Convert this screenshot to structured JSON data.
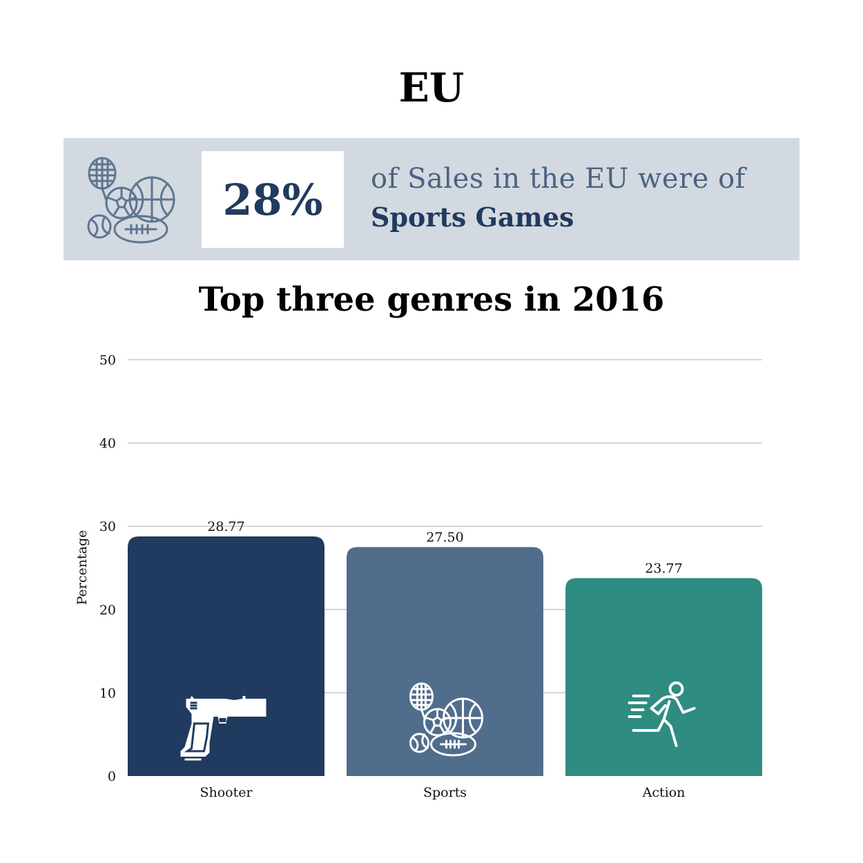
{
  "region_title": "EU",
  "banner": {
    "icon": "sports-balls-icon",
    "stat": "28%",
    "line1": "of Sales in the EU were of",
    "line2": "Sports Games"
  },
  "colors": {
    "banner_bg": "#d3d9e0",
    "navy": "#213a5f",
    "slate": "#516d8c",
    "teal": "#2e8c80",
    "grid": "#c8c8c8"
  },
  "chart_data": {
    "type": "bar",
    "title": "Top three genres in 2016",
    "categories": [
      "Shooter",
      "Sports",
      "Action"
    ],
    "values": [
      28.77,
      27.5,
      23.77
    ],
    "value_labels": [
      "28.77",
      "27.50",
      "23.77"
    ],
    "bar_colors": [
      "#213a5f",
      "#516d8c",
      "#2e8c80"
    ],
    "bar_icons": [
      "pistol-icon",
      "sports-balls-icon",
      "running-person-icon"
    ],
    "ylabel": "Percentage",
    "xlabel": "",
    "ylim": [
      0,
      50
    ],
    "yticks": [
      0,
      10,
      20,
      30,
      40,
      50
    ],
    "grid": true,
    "legend": "none"
  }
}
